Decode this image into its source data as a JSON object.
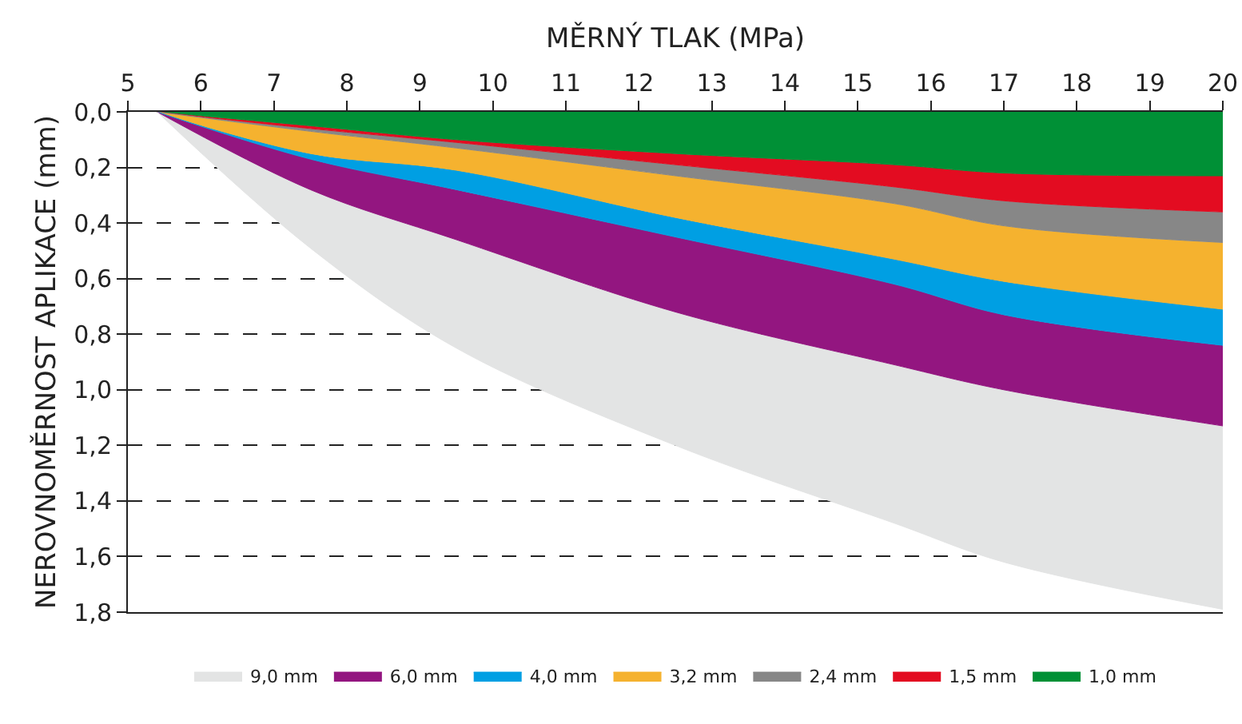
{
  "chart_data": {
    "type": "area",
    "xlabel": "MĚRNÝ TLAK (MPa)",
    "ylabel": "NEROVNOMĚRNOST APLIKACE (mm)",
    "x": [
      5.4,
      7.5,
      9.5,
      12.5,
      15.5,
      17,
      20
    ],
    "series": [
      {
        "name": "1,0 mm",
        "color": "#009036",
        "values": [
          0,
          0.05,
          0.1,
          0.15,
          0.19,
          0.22,
          0.23
        ]
      },
      {
        "name": "1,5 mm",
        "color": "#e30c21",
        "values": [
          0,
          0.06,
          0.11,
          0.19,
          0.27,
          0.32,
          0.36
        ]
      },
      {
        "name": "2,4 mm",
        "color": "#878787",
        "values": [
          0,
          0.07,
          0.13,
          0.23,
          0.33,
          0.41,
          0.47
        ]
      },
      {
        "name": "3,2 mm",
        "color": "#f5b22f",
        "values": [
          0,
          0.15,
          0.21,
          0.38,
          0.53,
          0.61,
          0.71
        ]
      },
      {
        "name": "4,0 mm",
        "color": "#009fe3",
        "values": [
          0,
          0.17,
          0.28,
          0.45,
          0.62,
          0.73,
          0.84
        ]
      },
      {
        "name": "6,0 mm",
        "color": "#931680",
        "values": [
          0,
          0.28,
          0.46,
          0.72,
          0.91,
          1.0,
          1.13
        ]
      },
      {
        "name": "9,0 mm",
        "color": "#e3e4e4",
        "values": [
          0,
          0.49,
          0.85,
          1.2,
          1.48,
          1.62,
          1.79
        ]
      }
    ],
    "xlim": [
      5,
      20
    ],
    "xticks": [
      5,
      6,
      7,
      8,
      9,
      10,
      11,
      12,
      13,
      14,
      15,
      16,
      17,
      18,
      19,
      20
    ],
    "ylim": [
      1.8,
      0
    ],
    "yticks": [
      {
        "value": 0,
        "label": "0,0"
      },
      {
        "value": 0.2,
        "label": "0,2"
      },
      {
        "value": 0.4,
        "label": "0,4"
      },
      {
        "value": 0.6,
        "label": "0,6"
      },
      {
        "value": 0.8,
        "label": "0,8"
      },
      {
        "value": 1.0,
        "label": "1,0"
      },
      {
        "value": 1.2,
        "label": "1,2"
      },
      {
        "value": 1.4,
        "label": "1,4"
      },
      {
        "value": 1.6,
        "label": "1,6"
      },
      {
        "value": 1.8,
        "label": "1,8"
      }
    ],
    "grid": "y",
    "line_style": "dashed",
    "legend": "bottom",
    "marker": "none"
  }
}
